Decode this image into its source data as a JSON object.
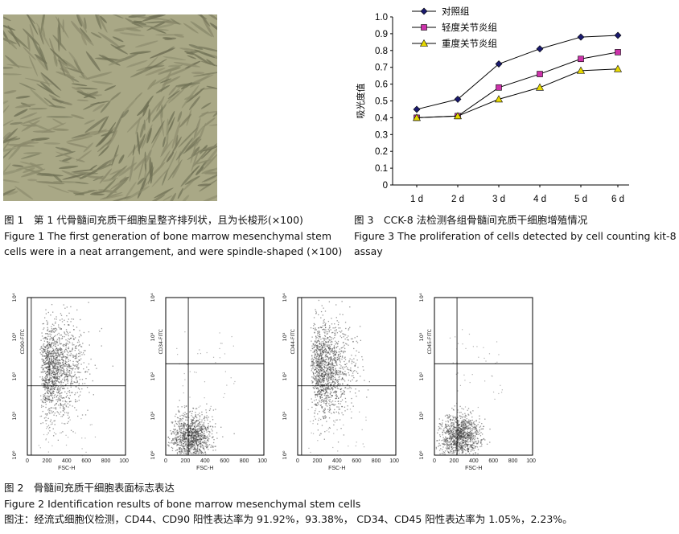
{
  "figure1": {
    "caption_cn": "图 1　第 1 代骨髓间充质干细胞呈整齐排列状，且为长梭形(×100)",
    "caption_en_1": "Figure 1    The first generation of bone marrow mesenchymal stem",
    "caption_en_2": "cells were in a neat arrangement, and were spindle-shaped (×100)"
  },
  "figure3": {
    "caption_cn": "图 3　CCK-8 法检测各组骨髓间充质干细胞增殖情况",
    "caption_en_1": "Figure 3    The proliferation of cells detected by cell counting kit-8",
    "caption_en_2": "assay"
  },
  "chart_data": {
    "type": "line",
    "categories": [
      "1 d",
      "2 d",
      "3 d",
      "4 d",
      "5 d",
      "6 d"
    ],
    "ylabel": "吸光度值",
    "ylim": [
      0,
      1.0
    ],
    "yticks": [
      "0",
      "0.1",
      "0.2",
      "0.3",
      "0.4",
      "0.5",
      "0.6",
      "0.7",
      "0.8",
      "0.9",
      "1.0"
    ],
    "legend_position": "top-left",
    "series": [
      {
        "name": "对照组",
        "marker": "diamond",
        "values": [
          0.45,
          0.51,
          0.72,
          0.81,
          0.88,
          0.89
        ]
      },
      {
        "name": "轻度关节炎组",
        "marker": "square",
        "values": [
          0.4,
          0.41,
          0.58,
          0.66,
          0.75,
          0.79
        ]
      },
      {
        "name": "重度关节炎组",
        "marker": "triangle",
        "values": [
          0.4,
          0.41,
          0.51,
          0.58,
          0.68,
          0.69
        ]
      }
    ],
    "colors": {
      "control": "#1a1a6e",
      "mild": "#cc33aa",
      "severe": "#e6d800"
    }
  },
  "figure2": {
    "panels": [
      {
        "ylabel": "CD90-FITC",
        "xlabel": "FSC-H",
        "pattern": "high"
      },
      {
        "ylabel": "CD34-FITC",
        "xlabel": "FSC-H",
        "pattern": "low"
      },
      {
        "ylabel": "CD44-FITC",
        "xlabel": "FSC-H",
        "pattern": "high"
      },
      {
        "ylabel": "CD45-FITC",
        "xlabel": "FSC-H",
        "pattern": "low"
      }
    ],
    "x_ticks": [
      "0",
      "200",
      "400",
      "600",
      "800",
      "1000"
    ],
    "y_ticks": [
      "10⁰",
      "10¹",
      "10²",
      "10³",
      "10⁴"
    ],
    "caption_cn": "图 2　骨髓间充质干细胞表面标志表达",
    "caption_en": "Figure 2    Identification results of bone marrow mesenchymal stem cells",
    "note": "图注：经流式细胞仪检测，CD44、CD90 阳性表达率为 91.92%，93.38%，  CD34、CD45 阳性表达率为 1.05%，2.23%。"
  }
}
